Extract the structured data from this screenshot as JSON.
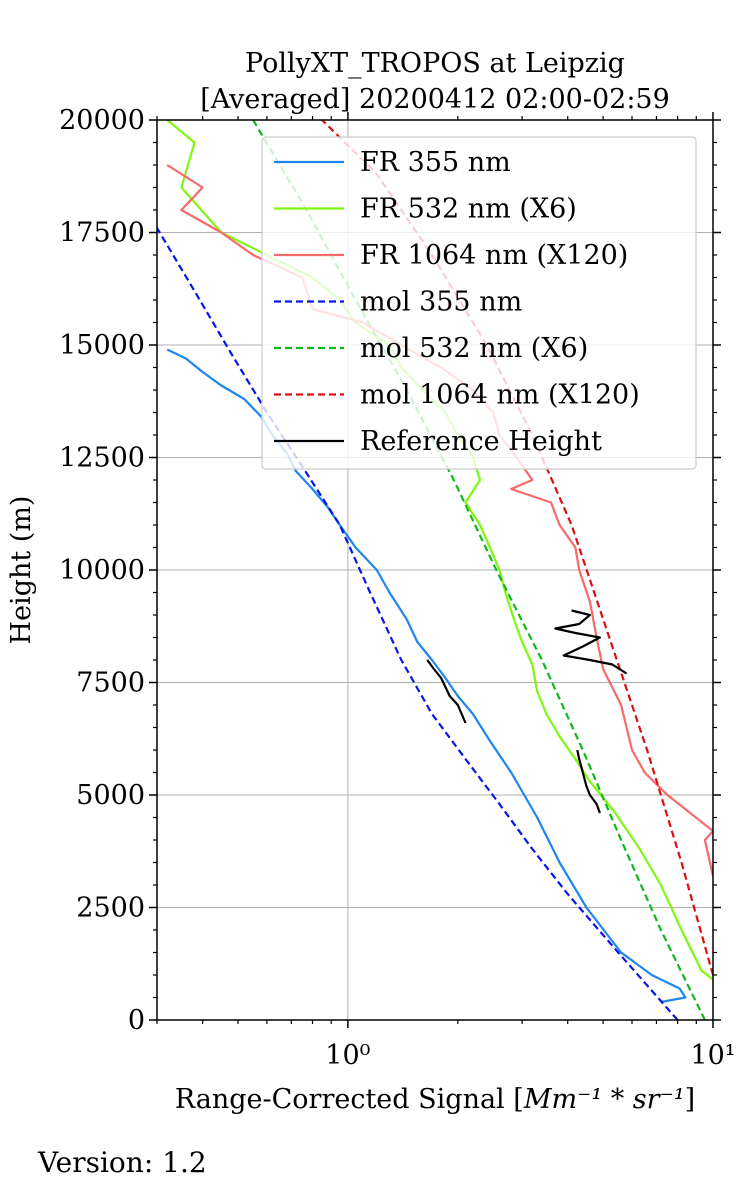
{
  "chart_data": {
    "type": "line",
    "title": "PollyXT_TROPOS at Leipzig",
    "subtitle": "[Averaged] 20200412 02:00-02:59",
    "xlabel_text": "Range-Corrected Signal [",
    "xlabel_math": "Mm⁻¹ * sr⁻¹",
    "xlabel_close": "]",
    "ylabel": "Height (m)",
    "xscale": "log",
    "xlim": [
      0.3,
      10
    ],
    "ylim": [
      0,
      20000
    ],
    "grid": true,
    "legend_position": "top-right",
    "x_ticks": [
      {
        "value": 1,
        "label": "10⁰"
      },
      {
        "value": 10,
        "label": "10¹"
      }
    ],
    "y_ticks": [
      {
        "value": 0,
        "label": "0"
      },
      {
        "value": 2500,
        "label": "2500"
      },
      {
        "value": 5000,
        "label": "5000"
      },
      {
        "value": 7500,
        "label": "7500"
      },
      {
        "value": 10000,
        "label": "10000"
      },
      {
        "value": 12500,
        "label": "12500"
      },
      {
        "value": 15000,
        "label": "15000"
      },
      {
        "value": 17500,
        "label": "17500"
      },
      {
        "value": 20000,
        "label": "20000"
      }
    ],
    "series": [
      {
        "name": "FR 355 nm",
        "color": "#1f85f0",
        "style": "solid",
        "points": [
          [
            7.2,
            400
          ],
          [
            8.4,
            500
          ],
          [
            8.1,
            700
          ],
          [
            6.8,
            1000
          ],
          [
            5.6,
            1500
          ],
          [
            4.5,
            2500
          ],
          [
            3.8,
            3500
          ],
          [
            3.3,
            4500
          ],
          [
            2.8,
            5500
          ],
          [
            2.45,
            6200
          ],
          [
            2.2,
            6800
          ],
          [
            2.0,
            7200
          ],
          [
            1.85,
            7600
          ],
          [
            1.7,
            8000
          ],
          [
            1.55,
            8400
          ],
          [
            1.45,
            8900
          ],
          [
            1.3,
            9500
          ],
          [
            1.2,
            10000
          ],
          [
            1.05,
            10500
          ],
          [
            0.95,
            11000
          ],
          [
            0.88,
            11400
          ],
          [
            0.8,
            11800
          ],
          [
            0.72,
            12200
          ],
          [
            0.68,
            12600
          ],
          [
            0.62,
            13000
          ],
          [
            0.58,
            13400
          ],
          [
            0.52,
            13800
          ],
          [
            0.45,
            14100
          ],
          [
            0.4,
            14400
          ],
          [
            0.36,
            14700
          ],
          [
            0.32,
            14900
          ]
        ]
      },
      {
        "name": "FR 532 nm (X6)",
        "color": "#7ff710",
        "style": "solid",
        "points": [
          [
            10,
            900
          ],
          [
            9.3,
            1100
          ],
          [
            8.2,
            2000
          ],
          [
            7.2,
            3000
          ],
          [
            6.3,
            3800
          ],
          [
            5.4,
            4600
          ],
          [
            4.6,
            5300
          ],
          [
            4.2,
            5800
          ],
          [
            3.8,
            6300
          ],
          [
            3.5,
            6800
          ],
          [
            3.3,
            7300
          ],
          [
            3.2,
            7900
          ],
          [
            3.0,
            8400
          ],
          [
            2.85,
            8900
          ],
          [
            2.7,
            9500
          ],
          [
            2.6,
            10000
          ],
          [
            2.45,
            10500
          ],
          [
            2.3,
            11000
          ],
          [
            2.1,
            11500
          ],
          [
            2.3,
            12000
          ],
          [
            2.2,
            12500
          ],
          [
            2.0,
            13000
          ],
          [
            1.85,
            13500
          ],
          [
            1.6,
            14000
          ],
          [
            1.4,
            14500
          ],
          [
            1.3,
            15000
          ],
          [
            1.05,
            15500
          ],
          [
            0.95,
            16000
          ],
          [
            0.8,
            16500
          ],
          [
            0.6,
            17000
          ],
          [
            0.45,
            17500
          ],
          [
            0.35,
            18500
          ],
          [
            0.38,
            19500
          ],
          [
            0.32,
            20000
          ]
        ]
      },
      {
        "name": "FR 1064 nm (X120)",
        "color": "#f76a6a",
        "style": "solid",
        "points": [
          [
            10,
            3200
          ],
          [
            9.5,
            4000
          ],
          [
            10,
            4200
          ],
          [
            7.5,
            5000
          ],
          [
            6.5,
            5500
          ],
          [
            6.0,
            6000
          ],
          [
            5.6,
            7000
          ],
          [
            5.0,
            7800
          ],
          [
            4.8,
            8500
          ],
          [
            4.6,
            9300
          ],
          [
            4.3,
            10000
          ],
          [
            4.2,
            10500
          ],
          [
            3.8,
            11000
          ],
          [
            3.6,
            11500
          ],
          [
            2.8,
            11800
          ],
          [
            3.2,
            12000
          ],
          [
            2.9,
            12500
          ],
          [
            2.6,
            13000
          ],
          [
            2.5,
            13500
          ],
          [
            2.2,
            14000
          ],
          [
            1.8,
            14500
          ],
          [
            1.4,
            15000
          ],
          [
            1.1,
            15500
          ],
          [
            0.8,
            15800
          ],
          [
            0.75,
            16500
          ],
          [
            0.55,
            17000
          ],
          [
            0.45,
            17500
          ],
          [
            0.35,
            18000
          ],
          [
            0.4,
            18500
          ],
          [
            0.32,
            19000
          ]
        ]
      },
      {
        "name": "mol 355 nm",
        "color": "#0a14e6",
        "style": "dashed",
        "points": [
          [
            8.0,
            0
          ],
          [
            5.5,
            1500
          ],
          [
            4.0,
            2800
          ],
          [
            3.2,
            3800
          ],
          [
            2.6,
            4800
          ],
          [
            2.1,
            5800
          ],
          [
            1.7,
            6800
          ],
          [
            1.4,
            8000
          ],
          [
            1.15,
            9500
          ],
          [
            0.95,
            11000
          ],
          [
            0.75,
            12300
          ],
          [
            0.6,
            13500
          ],
          [
            0.48,
            14800
          ],
          [
            0.38,
            16200
          ],
          [
            0.3,
            17600
          ]
        ]
      },
      {
        "name": "mol 532 nm (X6)",
        "color": "#10b81b",
        "style": "dashed",
        "points": [
          [
            9.5,
            0
          ],
          [
            7.2,
            2000
          ],
          [
            5.6,
            4000
          ],
          [
            4.4,
            6000
          ],
          [
            3.4,
            8000
          ],
          [
            2.55,
            10000
          ],
          [
            1.95,
            12000
          ],
          [
            1.45,
            14000
          ],
          [
            1.05,
            16000
          ],
          [
            0.77,
            18000
          ],
          [
            0.55,
            20000
          ]
        ]
      },
      {
        "name": "mol 1064 nm (X120)",
        "color": "#d91010",
        "style": "dashed",
        "points": [
          [
            10,
            1000
          ],
          [
            8.2,
            3500
          ],
          [
            6.6,
            6000
          ],
          [
            5.2,
            8500
          ],
          [
            4.1,
            11000
          ],
          [
            3.2,
            13000
          ],
          [
            2.4,
            15000
          ],
          [
            1.7,
            17000
          ],
          [
            1.2,
            18800
          ],
          [
            0.85,
            20000
          ]
        ]
      },
      {
        "name": "Reference Height",
        "color": "#000000",
        "style": "solid",
        "points": [
          [
            1.65,
            8000
          ],
          [
            1.72,
            7800
          ],
          [
            1.8,
            7600
          ],
          [
            1.85,
            7400
          ],
          [
            1.9,
            7200
          ],
          [
            2.0,
            7000
          ],
          [
            2.05,
            6800
          ],
          [
            2.1,
            6600
          ],
          [
            4.9,
            4600
          ],
          [
            4.8,
            4800
          ],
          [
            4.6,
            5000
          ],
          [
            4.5,
            5200
          ],
          [
            4.4,
            5500
          ],
          [
            4.3,
            5800
          ],
          [
            4.25,
            6000
          ],
          [
            5.8,
            7700
          ],
          [
            5.3,
            7900
          ],
          [
            4.6,
            8000
          ],
          [
            3.9,
            8100
          ],
          [
            4.4,
            8300
          ],
          [
            4.9,
            8500
          ],
          [
            4.2,
            8600
          ],
          [
            3.7,
            8700
          ],
          [
            4.3,
            8800
          ],
          [
            4.6,
            9000
          ],
          [
            4.1,
            9100
          ]
        ],
        "breaks": [
          8,
          15
        ]
      }
    ]
  },
  "footer": {
    "version_text": "Version: 1.2"
  }
}
